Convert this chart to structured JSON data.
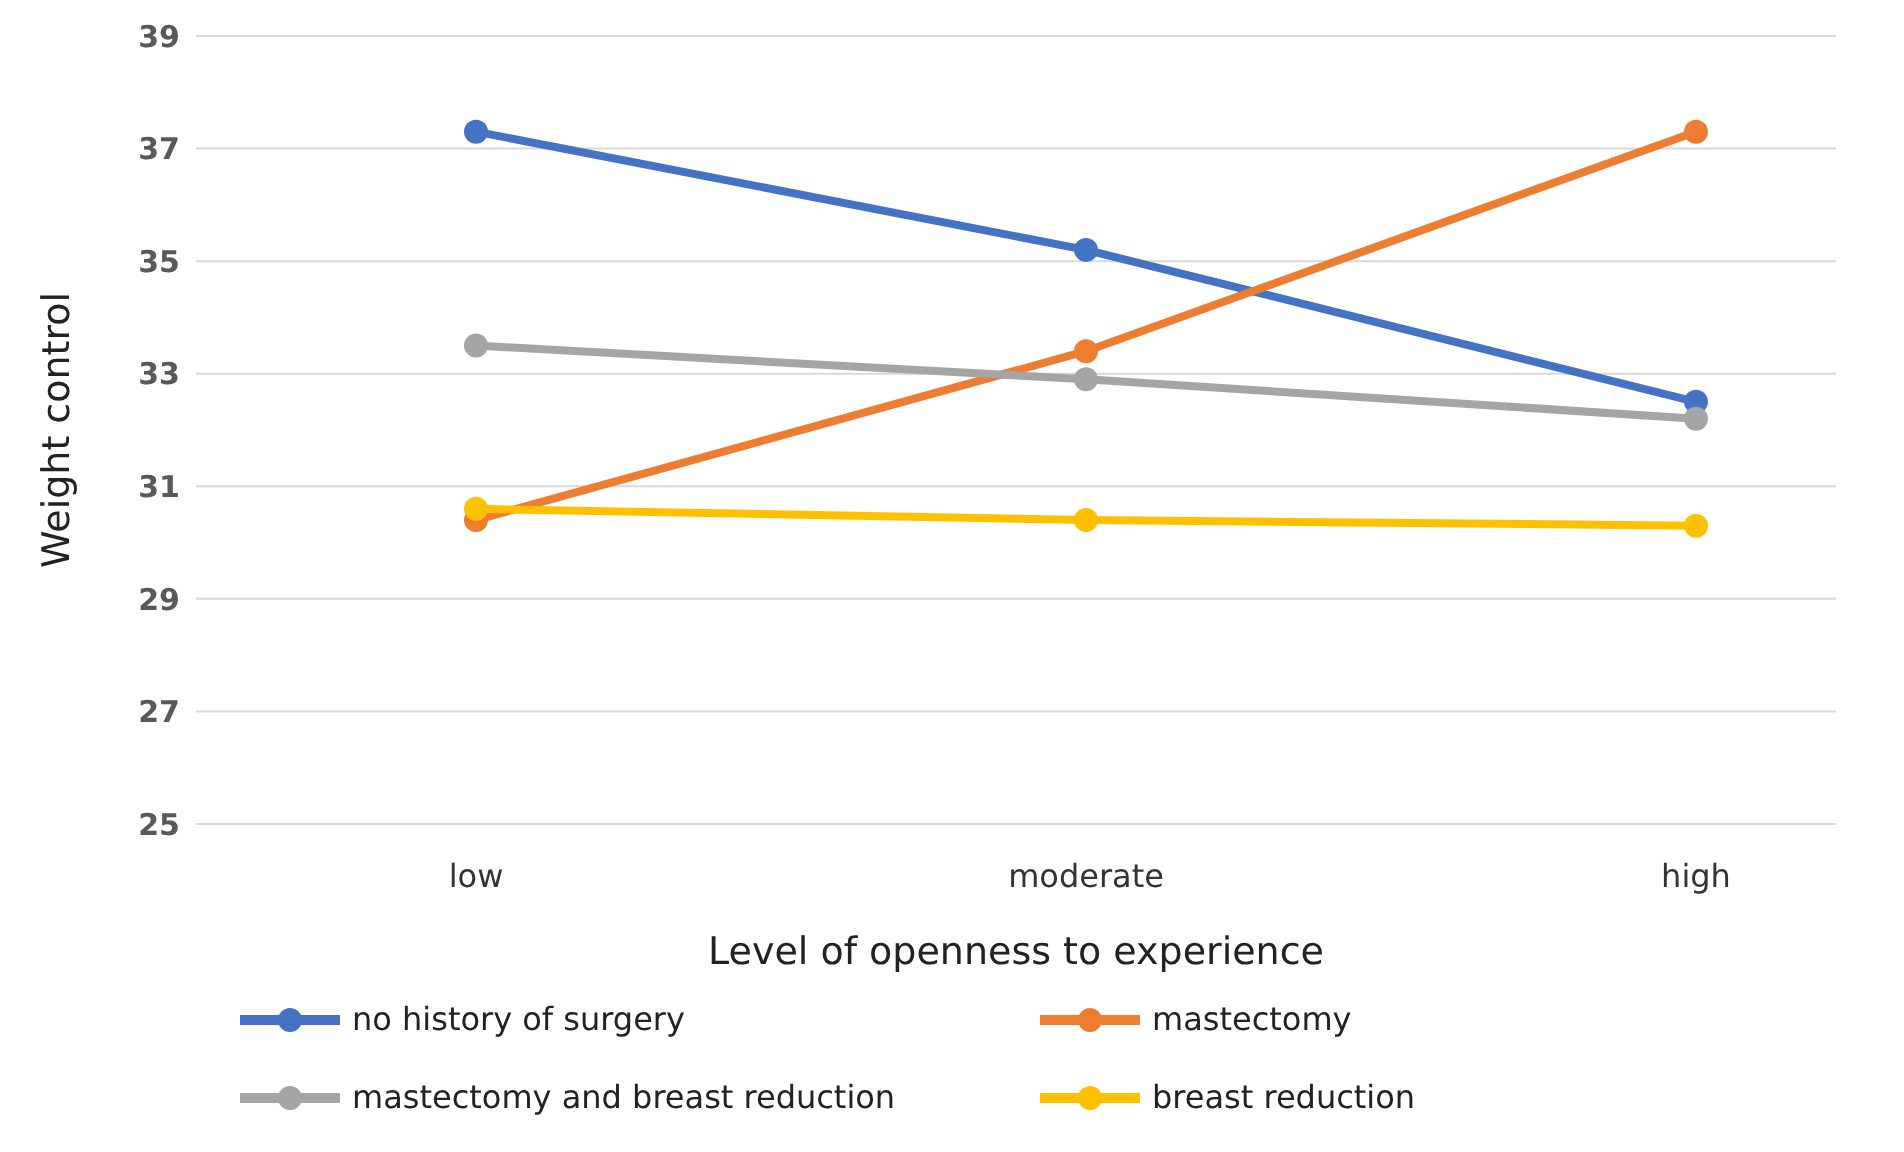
{
  "chart_data": {
    "type": "line",
    "xlabel": "Level of openness to experience",
    "ylabel": "Weight control",
    "categories": [
      "low",
      "moderate",
      "high"
    ],
    "series": [
      {
        "name": "no history of surgery",
        "color": "#4472c4",
        "values": [
          37.3,
          35.2,
          32.5
        ]
      },
      {
        "name": "mastectomy",
        "color": "#ed7d31",
        "values": [
          30.4,
          33.4,
          37.3
        ]
      },
      {
        "name": "mastectomy and breast reduction",
        "color": "#a5a5a5",
        "values": [
          33.5,
          32.9,
          32.2
        ]
      },
      {
        "name": "breast reduction",
        "color": "#ffc000",
        "values": [
          30.6,
          30.4,
          30.3
        ]
      }
    ],
    "ylim": [
      25,
      39
    ],
    "yticks": [
      25,
      27,
      29,
      31,
      33,
      35,
      37,
      39
    ],
    "grid": "y",
    "legend": "bottom",
    "marker": "circle",
    "line_style": "solid"
  }
}
